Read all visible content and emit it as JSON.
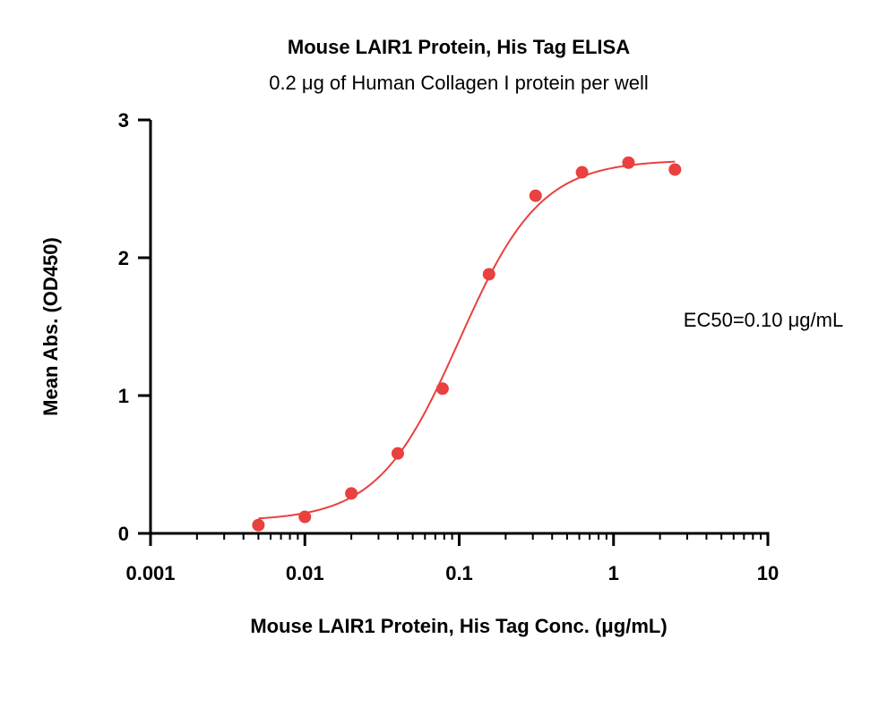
{
  "chart_data": {
    "type": "scatter",
    "title": "Mouse LAIR1 Protein, His Tag ELISA",
    "subtitle": "0.2 μg of Human Collagen I protein per well",
    "xlabel": "Mouse LAIR1 Protein, His Tag Conc. (μg/mL)",
    "ylabel": "Mean Abs. (OD450)",
    "x_scale": "log",
    "xlim": [
      0.001,
      10
    ],
    "ylim": [
      0,
      3
    ],
    "x_ticks": [
      0.001,
      0.01,
      0.1,
      1,
      10
    ],
    "x_tick_labels": [
      "0.001",
      "0.01",
      "0.1",
      "1",
      "10"
    ],
    "y_ticks": [
      0,
      1,
      2,
      3
    ],
    "y_tick_labels": [
      "0",
      "1",
      "2",
      "3"
    ],
    "grid": false,
    "annotation": "EC50=0.10 μg/mL",
    "series": [
      {
        "color": "#e8413f",
        "x": [
          0.005,
          0.01,
          0.02,
          0.04,
          0.078,
          0.156,
          0.3125,
          0.625,
          1.25,
          2.5
        ],
        "y": [
          0.06,
          0.12,
          0.29,
          0.58,
          1.05,
          1.88,
          2.45,
          2.62,
          2.69,
          2.64
        ]
      }
    ],
    "fit_curve": {
      "model": "4PL",
      "bottom": 0.09,
      "top": 2.71,
      "ec50": 0.1,
      "hill": 1.65,
      "x_range": [
        0.005,
        2.5
      ]
    }
  }
}
